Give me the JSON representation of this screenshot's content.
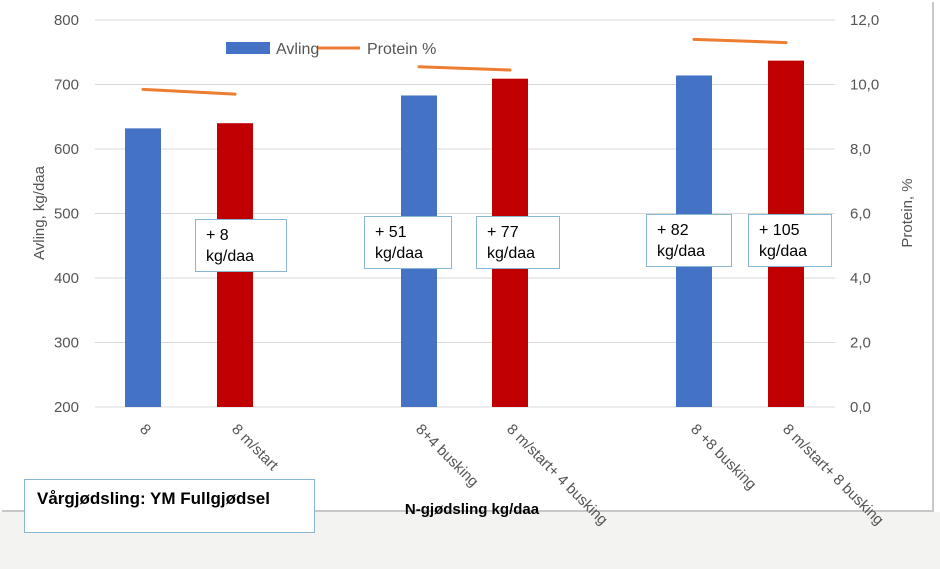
{
  "chart_data": {
    "type": "bar",
    "title": "",
    "xlabel": "N-gjødsling kg/daa",
    "ylabel": "Avling, kg/daa",
    "y2label": "Protein, %",
    "ylim": [
      200,
      800
    ],
    "yticks": [
      200,
      300,
      400,
      500,
      600,
      700,
      800
    ],
    "y2lim": [
      0,
      12
    ],
    "y2ticks": [
      "0,0",
      "2,0",
      "4,0",
      "6,0",
      "8,0",
      "10,0",
      "12,0"
    ],
    "categories": [
      "8",
      "8 m/start",
      "8+4 busking",
      "8 m/start+ 4 busking",
      "8 +8 busking",
      "8 m/start+ 8 busking"
    ],
    "series": [
      {
        "name": "Avling",
        "type": "bar",
        "axis": "left",
        "values": [
          632,
          640,
          683,
          709,
          714,
          737
        ],
        "colors": [
          "#4472c4",
          "#c00000",
          "#4472c4",
          "#c00000",
          "#4472c4",
          "#c00000"
        ]
      },
      {
        "name": "Protein %",
        "type": "line",
        "axis": "right",
        "color": "#ed7d31",
        "segments": [
          {
            "from": 0,
            "to": 1,
            "values": [
              9.85,
              9.7
            ]
          },
          {
            "from": 2,
            "to": 3,
            "values": [
              10.55,
              10.45
            ]
          },
          {
            "from": 4,
            "to": 5,
            "values": [
              11.4,
              11.3
            ]
          }
        ]
      }
    ],
    "legend": {
      "position": "top",
      "items": [
        "Avling",
        "Protein %"
      ]
    },
    "annotations": [
      {
        "line1": "+ 8",
        "line2": "kg/daa"
      },
      {
        "line1": "+ 51",
        "line2": "kg/daa"
      },
      {
        "line1": "+ 77",
        "line2": "kg/daa"
      },
      {
        "line1": "+ 82",
        "line2": "kg/daa"
      },
      {
        "line1": "+ 105",
        "line2": "kg/daa"
      }
    ]
  },
  "info_box": "Vårgjødsling: YM Fullgjødsel"
}
